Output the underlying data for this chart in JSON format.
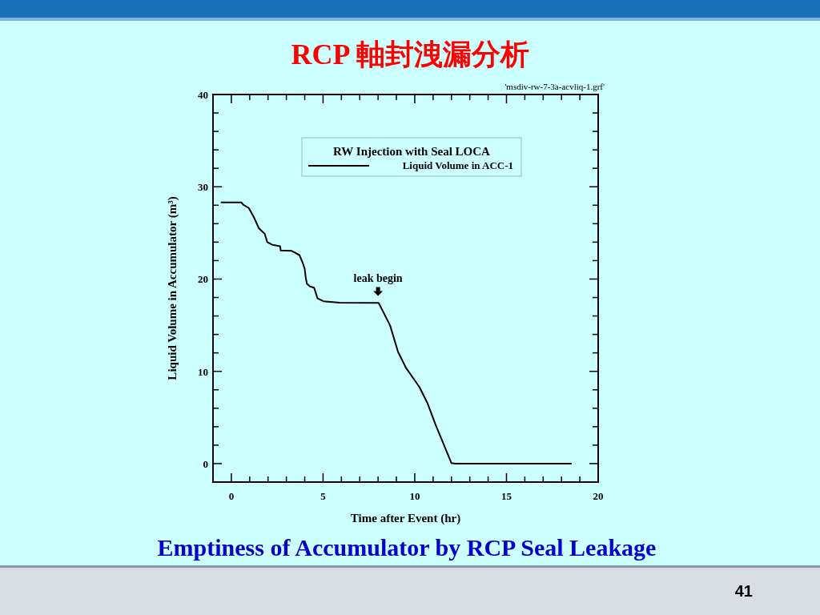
{
  "chart_data": {
    "type": "line",
    "title": "RCP 軸封洩漏分析",
    "subtitle": "Emptiness of Accumulator by RCP Seal Leakage",
    "xlabel": "Time after Event (hr)",
    "ylabel": "Liquid Volume in Accumulator (m³)",
    "legend_title": "RW Injection with Seal LOCA",
    "x": [
      -0.54,
      0.55,
      0.65,
      0.95,
      1.24,
      1.5,
      1.82,
      1.96,
      2.25,
      2.66,
      2.69,
      3.27,
      3.71,
      3.88,
      4.0,
      4.06,
      4.12,
      4.29,
      4.51,
      4.7,
      5.02,
      5.9,
      8.03,
      8.65,
      9.09,
      9.53,
      10.25,
      10.69,
      11.13,
      12.0,
      12.22,
      18.52
    ],
    "series": [
      {
        "name": "Liquid Volume in ACC-1",
        "color": "#000000",
        "values": [
          28.3,
          28.3,
          28.05,
          27.7,
          26.65,
          25.5,
          24.9,
          24.0,
          23.7,
          23.55,
          23.1,
          23.06,
          22.6,
          21.8,
          21.1,
          20.1,
          19.5,
          19.2,
          19.07,
          17.9,
          17.6,
          17.44,
          17.41,
          15.0,
          12.1,
          10.35,
          8.3,
          6.57,
          4.24,
          0.06,
          0,
          0
        ]
      }
    ],
    "xlim": [
      -1,
      20
    ],
    "ylim": [
      -2,
      40
    ],
    "xticks": [
      0,
      {
        "value": 1,
        "label": null
      },
      {
        "value": 2,
        "label": null
      },
      {
        "value": 3,
        "label": null
      },
      {
        "value": 4,
        "label": null
      },
      5,
      {
        "value": 6,
        "label": null
      },
      {
        "value": 7,
        "label": null
      },
      {
        "value": 8,
        "label": null
      },
      {
        "value": 9,
        "label": null
      },
      10,
      {
        "value": 11,
        "label": null
      },
      {
        "value": 12,
        "label": null
      },
      {
        "value": 13,
        "label": null
      },
      {
        "value": 14,
        "label": null
      },
      15,
      {
        "value": 16,
        "label": null
      },
      {
        "value": 17,
        "label": null
      },
      {
        "value": 18,
        "label": null
      },
      {
        "value": 19,
        "label": null
      },
      20
    ],
    "yticks": [
      0,
      {
        "value": 2,
        "label": null
      },
      {
        "value": 4,
        "label": null
      },
      {
        "value": 6,
        "label": null
      },
      {
        "value": 8,
        "label": null
      },
      10,
      {
        "value": 12,
        "label": null
      },
      {
        "value": 14,
        "label": null
      },
      {
        "value": 16,
        "label": null
      },
      {
        "value": 18,
        "label": null
      },
      20,
      {
        "value": 22,
        "label": null
      },
      {
        "value": 24,
        "label": null
      },
      {
        "value": 26,
        "label": null
      },
      {
        "value": 28,
        "label": null
      },
      30,
      {
        "value": 32,
        "label": null
      },
      {
        "value": 34,
        "label": null
      },
      {
        "value": 36,
        "label": null
      },
      {
        "value": 38,
        "label": null
      },
      40
    ],
    "annotations": [
      {
        "text": "leak begin",
        "x": 8.0,
        "y": 17.4
      },
      "'msdiv-rw-7-3a-acvliq-1.grf'",
      "41"
    ],
    "legend": "top",
    "grid": false,
    "marker": "none",
    "line_style": "solid"
  }
}
